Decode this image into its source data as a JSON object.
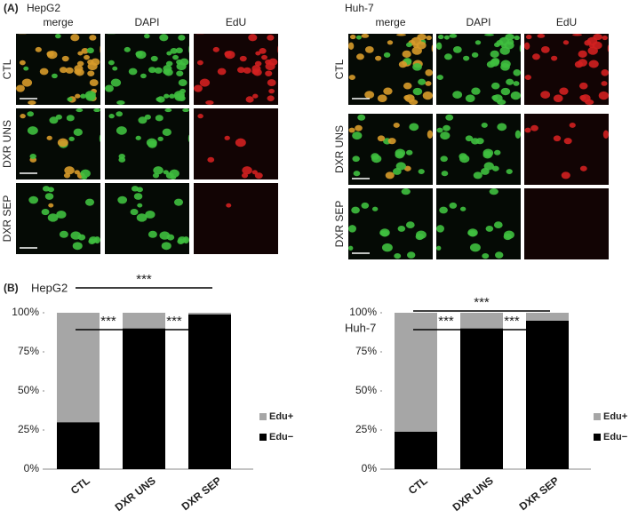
{
  "panel_a": {
    "label": "(A)",
    "groups": [
      {
        "title": "HepG2",
        "columns": [
          "merge",
          "DAPI",
          "EdU"
        ],
        "rows": [
          "CTL",
          "DXR UNS",
          "DXR SEP"
        ]
      },
      {
        "title": "Huh-7",
        "columns": [
          "merge",
          "DAPI",
          "EdU"
        ],
        "rows": [
          "CTL",
          "DXR UNS",
          "DXR SEP"
        ]
      }
    ]
  },
  "panel_b_label": "(B)",
  "chart_data": [
    {
      "type": "bar",
      "stacked": true,
      "title": "HepG2",
      "categories": [
        "CTL",
        "DXR UNS",
        "DXR SEP"
      ],
      "series": [
        {
          "name": "Edu−",
          "color": "#000000",
          "values": [
            30,
            90,
            99
          ]
        },
        {
          "name": "Edu+",
          "color": "#a6a6a6",
          "values": [
            70,
            10,
            1
          ]
        }
      ],
      "ylim": [
        0,
        100
      ],
      "yticks": [
        {
          "value": 0,
          "label": "0%"
        },
        {
          "value": 25,
          "label": "25%"
        },
        {
          "value": 50,
          "label": "50%"
        },
        {
          "value": 75,
          "label": "75%"
        },
        {
          "value": 100,
          "label": "100%"
        }
      ],
      "annotations": [
        "***",
        "***",
        "***"
      ]
    },
    {
      "type": "bar",
      "stacked": true,
      "title": "Huh-7",
      "categories": [
        "CTL",
        "DXR UNS",
        "DXR SEP"
      ],
      "series": [
        {
          "name": "Edu−",
          "color": "#000000",
          "values": [
            24,
            90,
            95
          ]
        },
        {
          "name": "Edu+",
          "color": "#a6a6a6",
          "values": [
            76,
            10,
            5
          ]
        }
      ],
      "ylim": [
        0,
        100
      ],
      "yticks": [
        {
          "value": 0,
          "label": "0%"
        },
        {
          "value": 25,
          "label": "25%"
        },
        {
          "value": 50,
          "label": "50%"
        },
        {
          "value": 75,
          "label": "75%"
        },
        {
          "value": 100,
          "label": "100%"
        }
      ],
      "annotations": [
        "***",
        "***",
        "***"
      ]
    }
  ]
}
